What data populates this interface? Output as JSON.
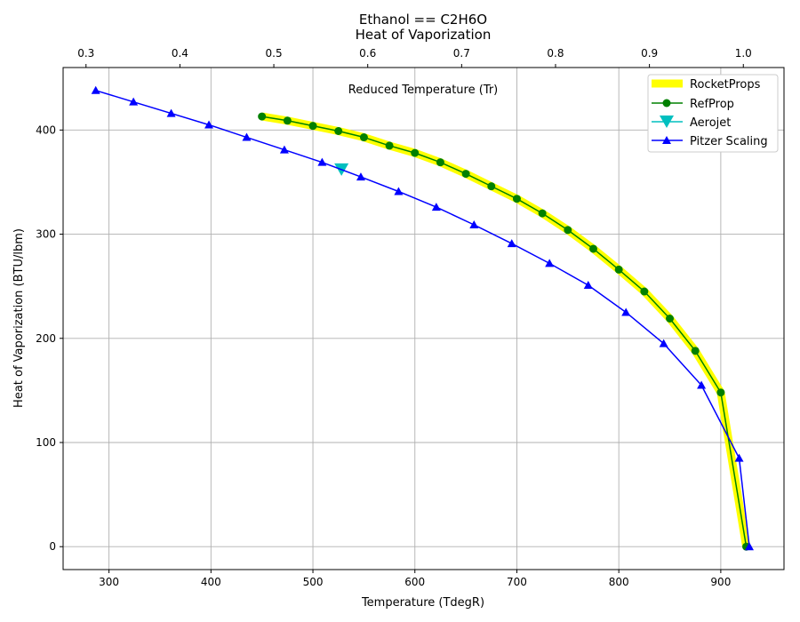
{
  "chart_data": {
    "type": "line",
    "title": "Ethanol == C2H6O",
    "subtitle": "Heat of Vaporization",
    "xlabel": "Temperature (TdegR)",
    "ylabel": "Heat of Vaporization (BTU/lbm)",
    "x2label": "Reduced Temperature (Tr)",
    "xlim": [
      255,
      962
    ],
    "ylim": [
      -22,
      460
    ],
    "x2lim": [
      0.2756,
      1.0433
    ],
    "xticks": [
      300,
      400,
      500,
      600,
      700,
      800,
      900
    ],
    "yticks": [
      0,
      100,
      200,
      300,
      400
    ],
    "x2ticks": [
      0.3,
      0.4,
      0.5,
      0.6,
      0.7,
      0.8,
      0.9,
      1.0
    ],
    "x2tick_labels": [
      "0.3",
      "0.4",
      "0.5",
      "0.6",
      "0.7",
      "0.8",
      "0.9",
      "1.0"
    ],
    "grid": true,
    "legend_position": "top-right",
    "series": [
      {
        "name": "RocketProps",
        "color": "#ffff00",
        "marker": "none",
        "x": [
          450,
          475,
          500,
          525,
          550,
          575,
          600,
          625,
          650,
          675,
          700,
          725,
          750,
          775,
          800,
          825,
          850,
          875,
          900,
          925
        ],
        "y": [
          413,
          409,
          404,
          399,
          393,
          385,
          378,
          369,
          358,
          346,
          334,
          320,
          304,
          286,
          266,
          245,
          219,
          188,
          148,
          0
        ]
      },
      {
        "name": "RefProp",
        "color": "#008000",
        "marker": "circle",
        "x": [
          450,
          475,
          500,
          525,
          550,
          575,
          600,
          625,
          650,
          675,
          700,
          725,
          750,
          775,
          800,
          825,
          850,
          875,
          900,
          925
        ],
        "y": [
          413,
          409,
          404,
          399,
          393,
          385,
          378,
          369,
          358,
          346,
          334,
          320,
          304,
          286,
          266,
          245,
          219,
          188,
          148,
          0
        ]
      },
      {
        "name": "Aerojet",
        "color": "#00bfbf",
        "marker": "triangle-down",
        "x": [
          528
        ],
        "y": [
          362
        ]
      },
      {
        "name": "Pitzer Scaling",
        "color": "#0000ff",
        "marker": "triangle-up",
        "x": [
          287,
          324,
          361,
          398,
          435,
          472,
          509,
          547,
          584,
          621,
          658,
          695,
          732,
          770,
          807,
          844,
          881,
          918,
          928
        ],
        "y": [
          438,
          427,
          416,
          405,
          393,
          381,
          369,
          355,
          341,
          326,
          309,
          291,
          272,
          251,
          225,
          195,
          155,
          85,
          0
        ]
      }
    ]
  }
}
